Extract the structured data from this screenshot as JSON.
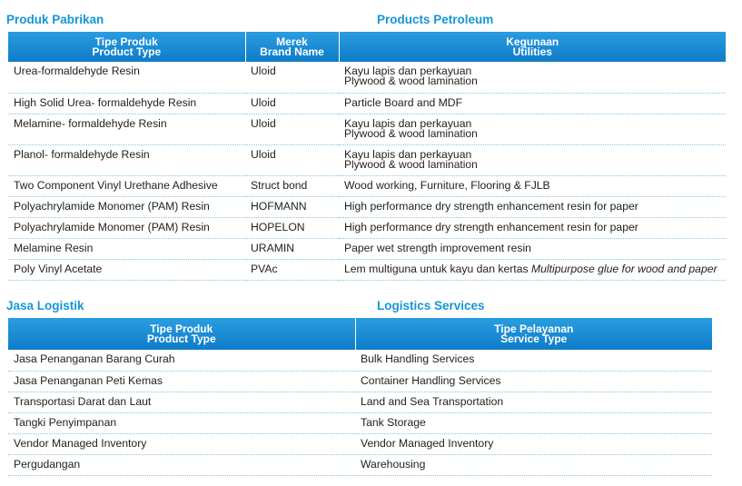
{
  "products": {
    "title_id": "Produk Pabrikan",
    "title_en": "Products Petroleum",
    "headers": [
      {
        "id": "Tipe Produk",
        "en": "Product Type"
      },
      {
        "id": "Merek",
        "en": "Brand Name"
      },
      {
        "id": "Kegunaan",
        "en": "Utilities"
      }
    ],
    "rows": [
      {
        "type": "Urea-formaldehyde Resin",
        "brand": "Uloid",
        "use_id": "Kayu lapis dan perkayuan",
        "use_en": "Plywood & wood lamination"
      },
      {
        "type": "High Solid Urea- formaldehyde Resin",
        "brand": "Uloid",
        "use_id": "Particle Board and MDF",
        "use_en": ""
      },
      {
        "type": "Melamine- formaldehyde Resin",
        "brand": "Uloid",
        "use_id": "Kayu lapis dan perkayuan",
        "use_en": "Plywood & wood lamination"
      },
      {
        "type": "Planol- formaldehyde Resin",
        "brand": "Uloid",
        "use_id": "Kayu lapis dan perkayuan",
        "use_en": "Plywood & wood lamination"
      },
      {
        "type": "Two Component Vinyl Urethane Adhesive",
        "brand": "Struct bond",
        "use_id": "Wood working, Furniture, Flooring & FJLB",
        "use_en": ""
      },
      {
        "type": "Polyachrylamide Monomer (PAM) Resin",
        "brand": "HOFMANN",
        "use_id": "High performance dry strength enhancement resin for paper",
        "use_en": ""
      },
      {
        "type": "Polyachrylamide Monomer (PAM) Resin",
        "brand": "HOPELON",
        "use_id": "High performance dry strength enhancement resin for paper",
        "use_en": ""
      },
      {
        "type": "Melamine Resin",
        "brand": "URAMIN",
        "use_id": "Paper wet strength improvement resin",
        "use_en": ""
      },
      {
        "type": "Poly Vinyl Acetate",
        "brand": "PVAc",
        "use_id": "Lem multiguna untuk kayu dan kertas",
        "use_en": "Multipurpose glue for wood and paper"
      }
    ]
  },
  "logistics": {
    "title_id": "Jasa Logistik",
    "title_en": "Logistics Services",
    "headers": [
      {
        "id": "Tipe Produk",
        "en": "Product Type"
      },
      {
        "id": "Tipe Pelayanan",
        "en": "Service Type"
      }
    ],
    "rows": [
      {
        "id": "Jasa Penanganan Barang Curah",
        "en": "Bulk Handling Services"
      },
      {
        "id": "Jasa Penanganan Peti Kemas",
        "en": "Container Handling Services"
      },
      {
        "id": "Transportasi Darat dan Laut",
        "en": "Land and Sea Transportation"
      },
      {
        "id": "Tangki Penyimpanan",
        "en": "Tank Storage"
      },
      {
        "id": "Vendor Managed Inventory",
        "en": "Vendor Managed Inventory"
      },
      {
        "id": "Pergudangan",
        "en": "Warehousing"
      }
    ]
  },
  "colors": {
    "accent": "#1596d6",
    "header_bg": "#0e7cc8",
    "divider": "#8cc4e6"
  }
}
